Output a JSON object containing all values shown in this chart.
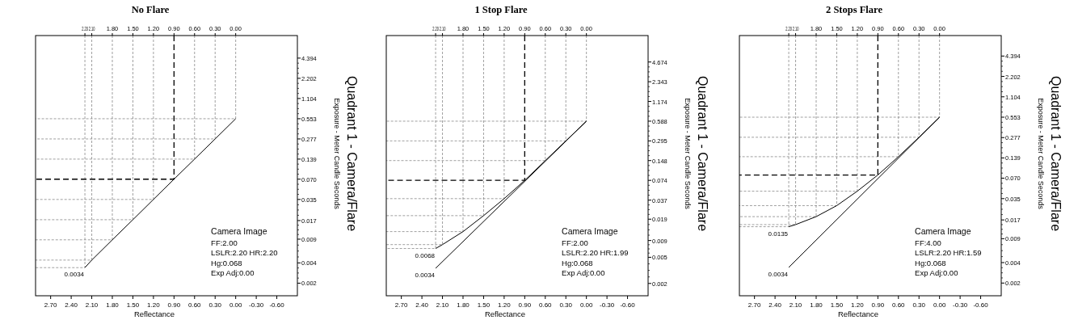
{
  "chart_data": [
    {
      "type": "line",
      "title": "No Flare",
      "xlabel": "Reflectance",
      "ylabel": "Exposure - Meter Candle Seconds",
      "log": "y",
      "xlim": [
        2.92,
        -0.9
      ],
      "ylim": [
        0.0013,
        9.5
      ],
      "xticks": [
        {
          "value": 2.7,
          "label": "2.70"
        },
        {
          "value": 2.4,
          "label": "2.40"
        },
        {
          "value": 2.1,
          "label": "2.10"
        },
        {
          "value": 1.8,
          "label": "1.80"
        },
        {
          "value": 1.5,
          "label": "1.50"
        },
        {
          "value": 1.2,
          "label": "1.20"
        },
        {
          "value": 0.9,
          "label": "0.90"
        },
        {
          "value": 0.6,
          "label": "0.60"
        },
        {
          "value": 0.3,
          "label": "0.30"
        },
        {
          "value": 0,
          "label": "0.00"
        },
        {
          "value": -0.3,
          "label": "-0.30"
        },
        {
          "value": -0.6,
          "label": "-0.60"
        }
      ],
      "x2lim": [
        2.92,
        -0.9
      ],
      "x2ticks": [
        {
          "value": 2.2,
          "label": "2.20"
        },
        {
          "value": 2.1,
          "label": "2.10"
        },
        {
          "value": 1.8,
          "label": "1.80"
        },
        {
          "value": 1.5,
          "label": "1.50"
        },
        {
          "value": 1.2,
          "label": "1.20"
        },
        {
          "value": 0.9,
          "label": "0.90"
        },
        {
          "value": 0.6,
          "label": "0.60"
        },
        {
          "value": 0.3,
          "label": "0.30"
        },
        {
          "value": 0,
          "label": "0.00"
        }
      ],
      "yticks": [
        0.002,
        0.004,
        0.009,
        0.017,
        0.035,
        {
          "value": 0.07,
          "label": "0.070"
        },
        0.139,
        0.277,
        0.553,
        1.104,
        2.202,
        4.394
      ],
      "series": [
        {
          "color": "#888888",
          "line_style": "dashed",
          "x": [
            2.2,
            2.2,
            2.92
          ],
          "values": [
            9.5,
            0.0034,
            0.0034
          ]
        },
        {
          "color": "#888888",
          "line_style": "dashed",
          "x": [
            2.1,
            2.1,
            2.92
          ],
          "values": [
            9.5,
            0.0044,
            0.0044
          ]
        },
        {
          "color": "#888888",
          "line_style": "dashed",
          "x": [
            1.8,
            1.8,
            2.92
          ],
          "values": [
            9.5,
            0.0088,
            0.0088
          ]
        },
        {
          "color": "#888888",
          "line_style": "dashed",
          "x": [
            1.5,
            1.5,
            2.92
          ],
          "values": [
            9.5,
            0.0175,
            0.0175
          ]
        },
        {
          "color": "#888888",
          "line_style": "dashed",
          "x": [
            1.2,
            1.2,
            2.92
          ],
          "values": [
            9.5,
            0.035,
            0.035
          ]
        },
        {
          "color": "#888888",
          "line_style": "dashed",
          "x": [
            0.6,
            0.6,
            2.92
          ],
          "values": [
            9.5,
            0.139,
            0.139
          ]
        },
        {
          "color": "#888888",
          "line_style": "dashed",
          "x": [
            0.3,
            0.3,
            2.92
          ],
          "values": [
            9.5,
            0.277,
            0.277
          ]
        },
        {
          "color": "#888888",
          "line_style": "dashed",
          "x": [
            0,
            0,
            2.92
          ],
          "values": [
            9.5,
            0.553,
            0.553
          ]
        },
        {
          "color": "#000000",
          "line_style": "dashed",
          "x": [
            0.9,
            0.9,
            2.92
          ],
          "values": [
            9.5,
            0.07,
            0.07
          ]
        },
        {
          "color": "#000000",
          "x": [
            2.2,
            2.1,
            1.8,
            1.5,
            1.2,
            0.9,
            0.6,
            0.3,
            0
          ],
          "values": [
            0.0034,
            0.0044,
            0.0088,
            0.0175,
            0.035,
            0.07,
            0.139,
            0.277,
            0.553
          ]
        }
      ],
      "annotations": [
        "Quadrant 1 - Camera/Flare",
        "Camera Image",
        "FF:2.00",
        "LSLR:2.20 HR:2.20",
        "Hg:0.068",
        "Exp Adj:0.00",
        "0.0034"
      ]
    },
    {
      "type": "line",
      "title": "1 Stop Flare",
      "xlabel": "Reflectance",
      "ylabel": "Exposure - Meter Candle Seconds",
      "log": "y",
      "xlim": [
        2.92,
        -0.9
      ],
      "ylim": [
        0.0013,
        11.8
      ],
      "xticks": [
        {
          "value": 2.7,
          "label": "2.70"
        },
        {
          "value": 2.4,
          "label": "2.40"
        },
        {
          "value": 2.1,
          "label": "2.10"
        },
        {
          "value": 1.8,
          "label": "1.80"
        },
        {
          "value": 1.5,
          "label": "1.50"
        },
        {
          "value": 1.2,
          "label": "1.20"
        },
        {
          "value": 0.9,
          "label": "0.90"
        },
        {
          "value": 0.6,
          "label": "0.60"
        },
        {
          "value": 0.3,
          "label": "0.30"
        },
        {
          "value": 0,
          "label": "0.00"
        },
        {
          "value": -0.3,
          "label": "-0.30"
        },
        {
          "value": -0.6,
          "label": "-0.60"
        }
      ],
      "x2lim": [
        2.92,
        -0.9
      ],
      "x2ticks": [
        {
          "value": 2.2,
          "label": "2.20"
        },
        {
          "value": 2.1,
          "label": "2.10"
        },
        {
          "value": 1.8,
          "label": "1.80"
        },
        {
          "value": 1.5,
          "label": "1.50"
        },
        {
          "value": 1.2,
          "label": "1.20"
        },
        {
          "value": 0.9,
          "label": "0.90"
        },
        {
          "value": 0.6,
          "label": "0.60"
        },
        {
          "value": 0.3,
          "label": "0.30"
        },
        {
          "value": 0,
          "label": "0.00"
        }
      ],
      "yticks": [
        0.002,
        0.005,
        0.009,
        0.019,
        0.037,
        0.074,
        0.148,
        0.295,
        0.588,
        1.174,
        2.343,
        4.674
      ],
      "series": [
        {
          "color": "#888888",
          "line_style": "dashed",
          "x": [
            2.2,
            2.2,
            2.92
          ],
          "values": [
            11.8,
            0.0068,
            0.0068
          ]
        },
        {
          "color": "#888888",
          "line_style": "dashed",
          "x": [
            2.1,
            2.1,
            2.92
          ],
          "values": [
            11.8,
            0.0078,
            0.0078
          ]
        },
        {
          "color": "#888888",
          "line_style": "dashed",
          "x": [
            1.8,
            1.8,
            2.92
          ],
          "values": [
            11.8,
            0.0123,
            0.0123
          ]
        },
        {
          "color": "#888888",
          "line_style": "dashed",
          "x": [
            1.5,
            1.5,
            2.92
          ],
          "values": [
            11.8,
            0.0215,
            0.0215
          ]
        },
        {
          "color": "#888888",
          "line_style": "dashed",
          "x": [
            1.2,
            1.2,
            2.92
          ],
          "values": [
            11.8,
            0.039,
            0.039
          ]
        },
        {
          "color": "#888888",
          "line_style": "dashed",
          "x": [
            0.6,
            0.6,
            2.92
          ],
          "values": [
            11.8,
            0.148,
            0.148
          ]
        },
        {
          "color": "#888888",
          "line_style": "dashed",
          "x": [
            0.3,
            0.3,
            2.92
          ],
          "values": [
            11.8,
            0.295,
            0.295
          ]
        },
        {
          "color": "#888888",
          "line_style": "dashed",
          "x": [
            0,
            0,
            2.92
          ],
          "values": [
            11.8,
            0.588,
            0.588
          ]
        },
        {
          "color": "#000000",
          "line_style": "dashed",
          "x": [
            0.9,
            0.9,
            2.92
          ],
          "values": [
            11.8,
            0.074,
            0.074
          ]
        },
        {
          "color": "#000000",
          "x": [
            2.2,
            2.1,
            1.8,
            1.5,
            1.2,
            0.9,
            0.6,
            0.3,
            0
          ],
          "values": [
            0.0068,
            0.0078,
            0.0123,
            0.0215,
            0.039,
            0.074,
            0.148,
            0.295,
            0.588
          ]
        },
        {
          "color": "#000000",
          "x": [
            2.2,
            0
          ],
          "values": [
            0.0034,
            0.588
          ]
        }
      ],
      "annotations": [
        "Quadrant 1 - Camera/Flare",
        "Camera Image",
        "FF:2.00",
        "LSLR:2.20 HR:1.99",
        "Hg:0.068",
        "Exp Adj:0.00",
        "0.0068",
        "0.0034"
      ]
    },
    {
      "type": "line",
      "title": "2 Stops Flare",
      "xlabel": "Reflectance",
      "ylabel": "Exposure - Meter Candle Seconds",
      "log": "y",
      "xlim": [
        2.92,
        -0.9
      ],
      "ylim": [
        0.0013,
        8.8
      ],
      "xticks": [
        {
          "value": 2.7,
          "label": "2.70"
        },
        {
          "value": 2.4,
          "label": "2.40"
        },
        {
          "value": 2.1,
          "label": "2.10"
        },
        {
          "value": 1.8,
          "label": "1.80"
        },
        {
          "value": 1.5,
          "label": "1.50"
        },
        {
          "value": 1.2,
          "label": "1.20"
        },
        {
          "value": 0.9,
          "label": "0.90"
        },
        {
          "value": 0.6,
          "label": "0.60"
        },
        {
          "value": 0.3,
          "label": "0.30"
        },
        {
          "value": 0,
          "label": "0.00"
        },
        {
          "value": -0.3,
          "label": "-0.30"
        },
        {
          "value": -0.6,
          "label": "-0.60"
        }
      ],
      "x2lim": [
        2.92,
        -0.9
      ],
      "x2ticks": [
        {
          "value": 2.2,
          "label": "2.20"
        },
        {
          "value": 2.1,
          "label": "2.10"
        },
        {
          "value": 1.8,
          "label": "1.80"
        },
        {
          "value": 1.5,
          "label": "1.50"
        },
        {
          "value": 1.2,
          "label": "1.20"
        },
        {
          "value": 0.9,
          "label": "0.90"
        },
        {
          "value": 0.6,
          "label": "0.60"
        },
        {
          "value": 0.3,
          "label": "0.30"
        },
        {
          "value": 0,
          "label": "0.00"
        }
      ],
      "yticks": [
        0.002,
        0.004,
        0.009,
        0.017,
        0.035,
        {
          "value": 0.07,
          "label": "0.070"
        },
        0.139,
        0.277,
        0.553,
        1.104,
        2.202,
        4.394
      ],
      "series": [
        {
          "color": "#888888",
          "line_style": "dashed",
          "x": [
            2.2,
            2.2,
            2.92
          ],
          "values": [
            8.8,
            0.0135,
            0.0135
          ]
        },
        {
          "color": "#888888",
          "line_style": "dashed",
          "x": [
            2.1,
            2.1,
            2.92
          ],
          "values": [
            8.8,
            0.0145,
            0.0145
          ]
        },
        {
          "color": "#888888",
          "line_style": "dashed",
          "x": [
            1.8,
            1.8,
            2.92
          ],
          "values": [
            8.8,
            0.019,
            0.019
          ]
        },
        {
          "color": "#888888",
          "line_style": "dashed",
          "x": [
            1.5,
            1.5,
            2.92
          ],
          "values": [
            8.8,
            0.0276,
            0.0276
          ]
        },
        {
          "color": "#888888",
          "line_style": "dashed",
          "x": [
            1.2,
            1.2,
            2.92
          ],
          "values": [
            8.8,
            0.045,
            0.045
          ]
        },
        {
          "color": "#888888",
          "line_style": "dashed",
          "x": [
            0.6,
            0.6,
            2.92
          ],
          "values": [
            8.8,
            0.145,
            0.145
          ]
        },
        {
          "color": "#888888",
          "line_style": "dashed",
          "x": [
            0.3,
            0.3,
            2.92
          ],
          "values": [
            8.8,
            0.28,
            0.28
          ]
        },
        {
          "color": "#888888",
          "line_style": "dashed",
          "x": [
            0,
            0,
            2.92
          ],
          "values": [
            8.8,
            0.553,
            0.553
          ]
        },
        {
          "color": "#000000",
          "line_style": "dashed",
          "x": [
            0.9,
            0.9,
            2.92
          ],
          "values": [
            8.8,
            0.078,
            0.078
          ]
        },
        {
          "color": "#000000",
          "x": [
            2.2,
            2.1,
            1.8,
            1.5,
            1.2,
            0.9,
            0.6,
            0.3,
            0
          ],
          "values": [
            0.0135,
            0.0145,
            0.019,
            0.0276,
            0.045,
            0.078,
            0.145,
            0.28,
            0.553
          ]
        },
        {
          "color": "#000000",
          "x": [
            2.2,
            0
          ],
          "values": [
            0.0034,
            0.553
          ]
        }
      ],
      "annotations": [
        "Quadrant 1 - Camera/Flare",
        "Camera Image",
        "FF:4.00",
        "LSLR:2.20 HR:1.59",
        "Hg:0.068",
        "Exp Adj:0.00",
        "0.0135",
        "0.0034"
      ]
    }
  ]
}
